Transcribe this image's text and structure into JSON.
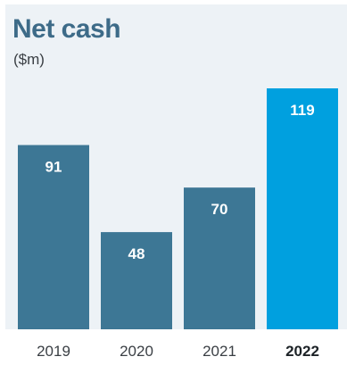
{
  "chart_data": {
    "type": "bar",
    "title": "Net cash",
    "subtitle": "($m)",
    "categories": [
      "2019",
      "2020",
      "2021",
      "2022"
    ],
    "values": [
      91,
      48,
      70,
      119
    ],
    "highlight_index": 3,
    "ylim": [
      0,
      119
    ],
    "grid": false,
    "colors": {
      "bar": "#3d7795",
      "bar_highlight": "#00a0df",
      "panel_background": "#edf2f6",
      "title": "#3d6b88"
    }
  }
}
